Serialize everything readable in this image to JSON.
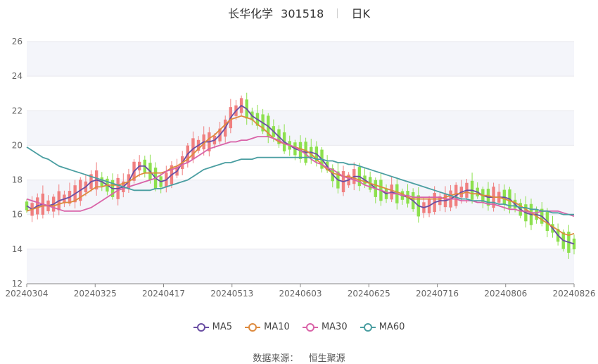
{
  "header": {
    "title": "长华化学",
    "code": "301518",
    "period": "日K"
  },
  "source": {
    "label": "数据来源：",
    "value": "恒生聚源"
  },
  "colors": {
    "up": "#f07f7f",
    "down": "#8ce04d",
    "ma5": "#6a4ea3",
    "ma10": "#dd8a3e",
    "ma30": "#d963a8",
    "ma60": "#4a9ea1",
    "band": "#f4f5fa",
    "axis": "#888888",
    "text": "#666666"
  },
  "chart_data": {
    "type": "candlestick",
    "title": "长华化学 301518 日K",
    "ylim": [
      12,
      26
    ],
    "yticks": [
      12,
      14,
      16,
      18,
      20,
      22,
      24,
      26
    ],
    "xticks": [
      "20240304",
      "20240325",
      "20240417",
      "20240513",
      "20240603",
      "20240625",
      "20240716",
      "20240806",
      "20240826"
    ],
    "legend": [
      "MA5",
      "MA10",
      "MA30",
      "MA60"
    ],
    "legend_position": "bottom",
    "grid": true,
    "ma_series": [
      {
        "name": "MA5",
        "key": "ma5",
        "values": [
          16.5,
          16.3,
          16.5,
          16.6,
          16.5,
          16.6,
          16.8,
          16.9,
          17.0,
          17.2,
          17.4,
          17.6,
          17.9,
          18.0,
          17.9,
          17.7,
          17.5,
          17.5,
          17.6,
          17.9,
          18.5,
          18.8,
          18.8,
          18.5,
          18.1,
          17.9,
          18.0,
          18.3,
          18.5,
          19.0,
          19.5,
          19.8,
          20.0,
          20.2,
          20.2,
          20.3,
          20.6,
          21.0,
          21.6,
          22.0,
          22.3,
          22.1,
          21.7,
          21.5,
          21.3,
          21.1,
          20.8,
          20.5,
          20.2,
          20.0,
          19.8,
          19.7,
          19.6,
          19.6,
          19.5,
          19.2,
          18.8,
          18.3,
          18.0,
          17.9,
          18.0,
          18.2,
          18.2,
          18.0,
          17.8,
          17.5,
          17.4,
          17.2,
          17.3,
          17.2,
          17.1,
          17.0,
          16.8,
          16.5,
          16.4,
          16.5,
          16.7,
          16.8,
          16.8,
          16.9,
          17.1,
          17.3,
          17.4,
          17.4,
          17.3,
          17.1,
          17.0,
          17.0,
          17.0,
          17.0,
          16.9,
          16.6,
          16.3,
          16.1,
          16.0,
          16.0,
          15.9,
          15.6,
          15.2,
          14.8,
          14.5,
          14.4,
          14.3
        ]
      },
      {
        "name": "MA10",
        "key": "ma10",
        "values": [
          16.2,
          16.3,
          16.4,
          16.5,
          16.5,
          16.5,
          16.6,
          16.7,
          16.7,
          16.8,
          17.0,
          17.2,
          17.4,
          17.6,
          17.6,
          17.7,
          17.7,
          17.7,
          17.8,
          17.9,
          18.1,
          18.3,
          18.4,
          18.4,
          18.4,
          18.4,
          18.5,
          18.7,
          18.8,
          19.0,
          19.2,
          19.5,
          19.8,
          20.1,
          20.4,
          20.6,
          20.9,
          21.2,
          21.5,
          21.6,
          21.7,
          21.6,
          21.5,
          21.2,
          21.0,
          20.7,
          20.4,
          20.2,
          20.1,
          20.0,
          19.9,
          19.8,
          19.7,
          19.5,
          19.2,
          18.9,
          18.6,
          18.4,
          18.3,
          18.2,
          18.2,
          18.1,
          18.0,
          17.9,
          17.8,
          17.7,
          17.6,
          17.5,
          17.4,
          17.3,
          17.2,
          17.0,
          16.9,
          16.9,
          16.9,
          16.9,
          16.9,
          16.9,
          17.0,
          17.1,
          17.2,
          17.2,
          17.3,
          17.2,
          17.2,
          17.1,
          17.1,
          17.0,
          17.0,
          16.9,
          16.8,
          16.7,
          16.5,
          16.3,
          16.1,
          15.9,
          15.7,
          15.5,
          15.3,
          15.1,
          14.9,
          14.8,
          14.9
        ]
      },
      {
        "name": "MA30",
        "key": "ma30",
        "values": [
          16.9,
          16.8,
          16.7,
          16.6,
          16.5,
          16.4,
          16.3,
          16.2,
          16.2,
          16.2,
          16.2,
          16.3,
          16.4,
          16.6,
          16.8,
          17.0,
          17.2,
          17.4,
          17.5,
          17.6,
          17.7,
          17.8,
          17.9,
          18.0,
          18.1,
          18.3,
          18.5,
          18.6,
          18.7,
          18.9,
          19.0,
          19.2,
          19.4,
          19.6,
          19.8,
          19.9,
          20.0,
          20.1,
          20.2,
          20.2,
          20.3,
          20.3,
          20.4,
          20.5,
          20.5,
          20.5,
          20.4,
          20.3,
          20.1,
          20.0,
          19.9,
          19.7,
          19.5,
          19.2,
          19.0,
          18.9,
          18.7,
          18.6,
          18.4,
          18.2,
          18.1,
          18.0,
          17.9,
          17.7,
          17.6,
          17.5,
          17.4,
          17.3,
          17.2,
          17.2,
          17.1,
          17.1,
          17.0,
          17.0,
          17.0,
          17.0,
          17.0,
          17.0,
          16.9,
          16.9,
          16.9,
          16.8,
          16.8,
          16.8,
          16.7,
          16.7,
          16.6,
          16.6,
          16.5,
          16.4,
          16.3,
          16.3,
          16.2,
          16.2,
          16.1,
          16.1,
          16.2,
          16.2,
          16.2,
          16.2,
          16.1,
          16.0,
          15.9
        ]
      },
      {
        "name": "MA60",
        "key": "ma60",
        "values": [
          19.9,
          19.7,
          19.5,
          19.3,
          19.2,
          19.0,
          18.8,
          18.7,
          18.6,
          18.5,
          18.4,
          18.3,
          18.2,
          18.1,
          18.0,
          17.9,
          17.8,
          17.7,
          17.6,
          17.5,
          17.4,
          17.4,
          17.4,
          17.4,
          17.5,
          17.5,
          17.6,
          17.7,
          17.8,
          17.9,
          18.0,
          18.2,
          18.4,
          18.6,
          18.7,
          18.8,
          18.9,
          19.0,
          19.0,
          19.1,
          19.2,
          19.2,
          19.2,
          19.3,
          19.3,
          19.3,
          19.3,
          19.3,
          19.3,
          19.3,
          19.3,
          19.3,
          19.3,
          19.3,
          19.2,
          19.2,
          19.1,
          19.1,
          19.0,
          19.0,
          18.9,
          18.9,
          18.8,
          18.7,
          18.6,
          18.5,
          18.4,
          18.3,
          18.2,
          18.1,
          18.0,
          17.9,
          17.8,
          17.7,
          17.6,
          17.5,
          17.4,
          17.3,
          17.2,
          17.1,
          17.0,
          16.9,
          16.9,
          16.8,
          16.8,
          16.8,
          16.7,
          16.7,
          16.6,
          16.6,
          16.5,
          16.5,
          16.4,
          16.4,
          16.3,
          16.3,
          16.2,
          16.2,
          16.1,
          16.1,
          16.0,
          16.0,
          16.0
        ]
      }
    ]
  }
}
